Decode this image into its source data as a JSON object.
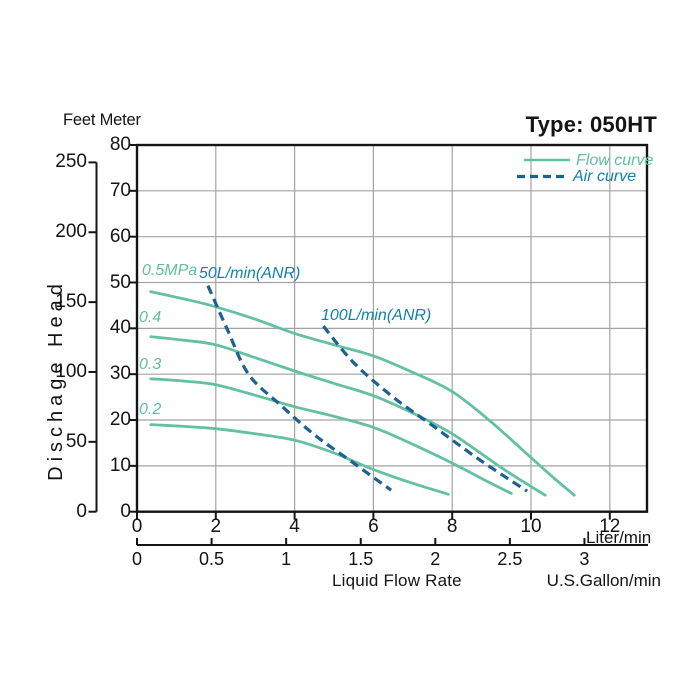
{
  "title": "Type: 050HT",
  "axes": {
    "units_header": "Feet Meter",
    "y_axis_title": "Dischage Head",
    "x_axis_title": "Liquid Flow Rate",
    "liter_unit": "Liter/min",
    "gallon_unit": "U.S.Gallon/min"
  },
  "legend": {
    "position": "top-right-inside",
    "flow": {
      "label": "Flow curve",
      "color": "#5fbfa0",
      "style": "solid"
    },
    "air": {
      "label": "Air curve",
      "color": "#1c6190",
      "style": "dashed"
    }
  },
  "annotations": {
    "p05": "0.5MPa",
    "p04": "0.4",
    "p03": "0.3",
    "p02": "0.2",
    "air50": "50L/min(ANR)",
    "air100": "100L/min(ANR)"
  },
  "colors": {
    "flow_curve": "#63c1a1",
    "air_curve": "#1c6190",
    "air_text": "#1380ac",
    "flow_text": "#5fbfa0",
    "grid": "#a3a3a3",
    "axis": "#141414"
  },
  "chart_data": {
    "type": "line",
    "title": "Type: 050HT",
    "xlabel": "Liquid Flow Rate",
    "ylabel": "Dischage Head",
    "x_unit_primary": "Liter/min",
    "x_unit_secondary": "U.S.Gallon/min",
    "y_unit_primary": "Meter",
    "y_unit_secondary": "Feet",
    "xlim_liter": [
      0,
      13
    ],
    "ylim_meter": [
      0,
      80
    ],
    "x_ticks_liter": [
      0,
      2,
      4,
      6,
      8,
      10,
      12
    ],
    "x_ticks_gallon": [
      0,
      0.5,
      1,
      1.5,
      2,
      2.5,
      3
    ],
    "y_ticks_meter": [
      0,
      10,
      20,
      30,
      40,
      50,
      60,
      70,
      80
    ],
    "y_ticks_feet": [
      0,
      50,
      100,
      150,
      200,
      250
    ],
    "grid": true,
    "series": [
      {
        "name": "0.5MPa",
        "group": "flow",
        "style": "solid",
        "points": [
          [
            0.35,
            48
          ],
          [
            1.2,
            46.4
          ],
          [
            2,
            44.7
          ],
          [
            3,
            42
          ],
          [
            4,
            38.9
          ],
          [
            5,
            36.4
          ],
          [
            6,
            34
          ],
          [
            7,
            30.4
          ],
          [
            8,
            26.2
          ],
          [
            9,
            19.5
          ],
          [
            10,
            11.8
          ],
          [
            10.6,
            7.2
          ],
          [
            11.1,
            3.6
          ]
        ]
      },
      {
        "name": "0.4",
        "group": "flow",
        "style": "solid",
        "points": [
          [
            0.35,
            38.2
          ],
          [
            1.2,
            37.4
          ],
          [
            2,
            36.4
          ],
          [
            3,
            33.6
          ],
          [
            4,
            30.7
          ],
          [
            5,
            28
          ],
          [
            6,
            25.3
          ],
          [
            7,
            21.5
          ],
          [
            8,
            17
          ],
          [
            9.3,
            9.3
          ],
          [
            10.36,
            3.6
          ]
        ]
      },
      {
        "name": "0.3",
        "group": "flow",
        "style": "solid",
        "points": [
          [
            0.35,
            29
          ],
          [
            1.2,
            28.5
          ],
          [
            2,
            27.7
          ],
          [
            3,
            25.4
          ],
          [
            4,
            22.9
          ],
          [
            5,
            20.8
          ],
          [
            6,
            18.4
          ],
          [
            7,
            14.7
          ],
          [
            8,
            10.6
          ],
          [
            8.8,
            7
          ],
          [
            9.5,
            4
          ]
        ]
      },
      {
        "name": "0.2",
        "group": "flow",
        "style": "solid",
        "points": [
          [
            0.35,
            19
          ],
          [
            1.2,
            18.6
          ],
          [
            2,
            18.1
          ],
          [
            3,
            17
          ],
          [
            4,
            15.6
          ],
          [
            5,
            12.8
          ],
          [
            6,
            9.2
          ],
          [
            7,
            6.2
          ],
          [
            7.9,
            3.8
          ]
        ]
      },
      {
        "name": "50L/min(ANR)",
        "group": "air",
        "style": "dashed",
        "points": [
          [
            1.8,
            49.3
          ],
          [
            2.28,
            40
          ],
          [
            2.83,
            30
          ],
          [
            3.64,
            23.3
          ],
          [
            4.5,
            16.8
          ],
          [
            5.45,
            10.9
          ],
          [
            6.45,
            4.7
          ]
        ]
      },
      {
        "name": "100L/min(ANR)",
        "group": "air",
        "style": "dashed",
        "points": [
          [
            4.73,
            40.5
          ],
          [
            5.5,
            32.5
          ],
          [
            6.5,
            25
          ],
          [
            7.5,
            18.8
          ],
          [
            8.7,
            11.3
          ],
          [
            9.9,
            4.5
          ]
        ]
      }
    ]
  }
}
